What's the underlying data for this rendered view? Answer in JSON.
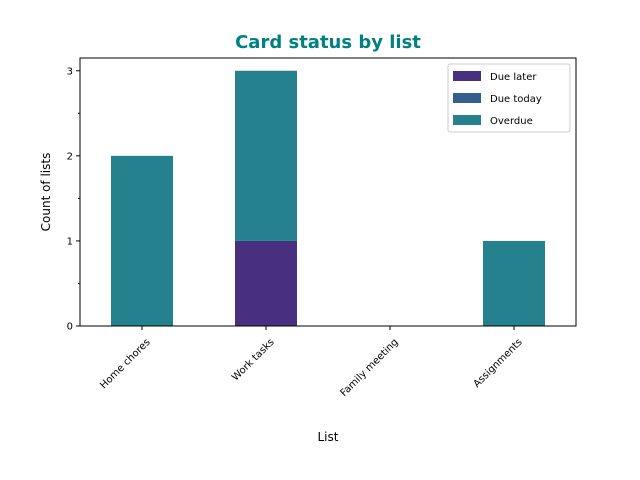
{
  "chart_data": {
    "type": "bar",
    "stacked": true,
    "title": "Card status by list",
    "title_color": "#008080",
    "xlabel": "List",
    "ylabel": "Count of lists",
    "categories": [
      "Home chores",
      "Work tasks",
      "Family meeting",
      "Assignments"
    ],
    "series": [
      {
        "name": "Due later",
        "color": "#482f7f",
        "values": [
          0,
          1,
          0,
          0
        ]
      },
      {
        "name": "Due today",
        "color": "#355f8d",
        "values": [
          0,
          0,
          0,
          0
        ]
      },
      {
        "name": "Overdue",
        "color": "#26818e",
        "values": [
          2,
          2,
          0,
          1
        ]
      }
    ],
    "ylim": [
      0,
      3.15
    ],
    "yticks": [
      0,
      1,
      2,
      3
    ],
    "grid": false,
    "legend_position": "top-right"
  }
}
